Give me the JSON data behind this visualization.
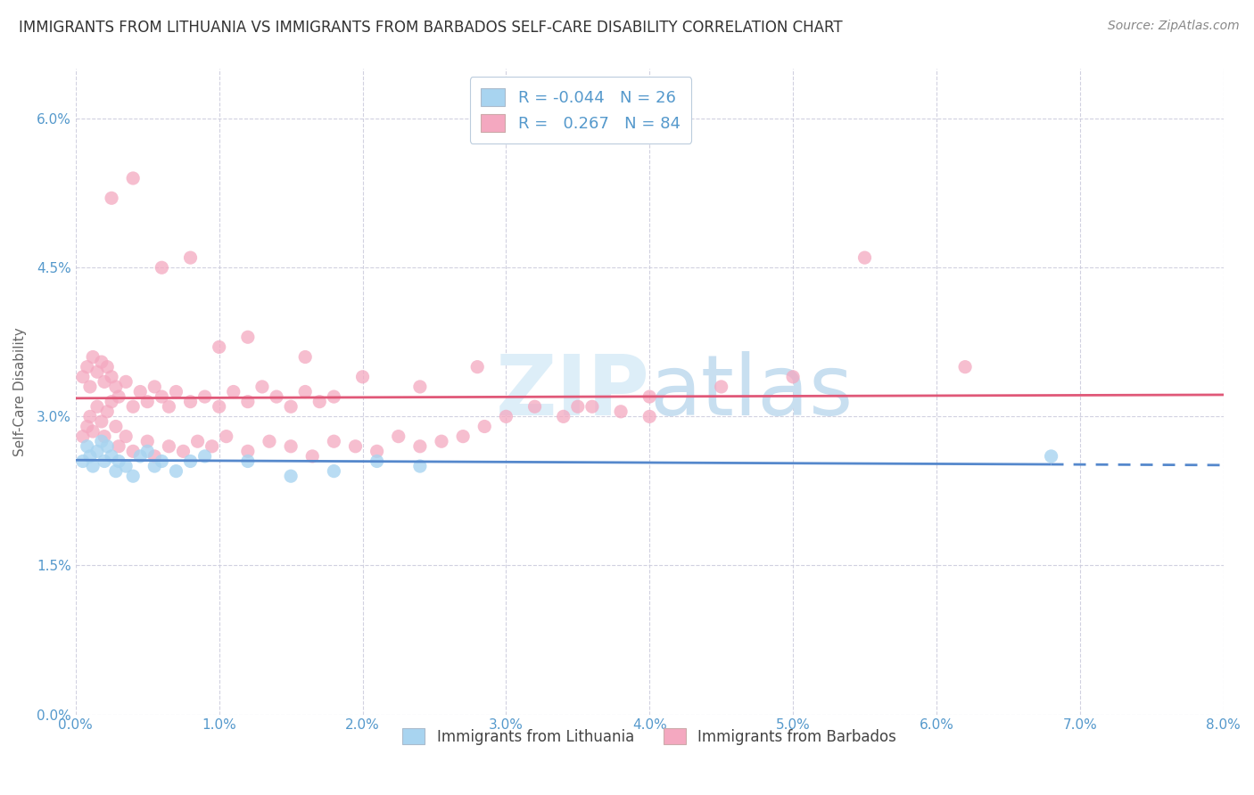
{
  "title": "IMMIGRANTS FROM LITHUANIA VS IMMIGRANTS FROM BARBADOS SELF-CARE DISABILITY CORRELATION CHART",
  "source": "Source: ZipAtlas.com",
  "ylabel": "Self-Care Disability",
  "y_ticks": [
    0.0,
    1.5,
    3.0,
    4.5,
    6.0
  ],
  "x_ticks": [
    0,
    1,
    2,
    3,
    4,
    5,
    6,
    7,
    8
  ],
  "x_lim": [
    0.0,
    8.0
  ],
  "y_lim": [
    0.0,
    6.5
  ],
  "color_lithuania": "#a8d4f0",
  "color_barbados": "#f4a8c0",
  "line_color_lithuania": "#5588cc",
  "line_color_barbados": "#e05878",
  "background_color": "#ffffff",
  "grid_color": "#ccccdd",
  "tick_color": "#5599cc",
  "title_color": "#333333",
  "source_color": "#888888",
  "watermark_color": "#ddeef8",
  "lith_x": [
    0.05,
    0.08,
    0.1,
    0.12,
    0.15,
    0.18,
    0.2,
    0.22,
    0.25,
    0.28,
    0.3,
    0.35,
    0.4,
    0.45,
    0.5,
    0.55,
    0.6,
    0.7,
    0.8,
    0.9,
    1.2,
    1.5,
    1.8,
    2.1,
    2.4,
    6.8
  ],
  "lith_y": [
    2.55,
    2.7,
    2.6,
    2.5,
    2.65,
    2.75,
    2.55,
    2.7,
    2.6,
    2.45,
    2.55,
    2.5,
    2.4,
    2.6,
    2.65,
    2.5,
    2.55,
    2.45,
    2.55,
    2.6,
    2.55,
    2.4,
    2.45,
    2.55,
    2.5,
    2.6
  ],
  "barb_x": [
    0.05,
    0.08,
    0.1,
    0.12,
    0.15,
    0.18,
    0.2,
    0.22,
    0.25,
    0.28,
    0.05,
    0.08,
    0.1,
    0.12,
    0.15,
    0.18,
    0.2,
    0.22,
    0.25,
    0.28,
    0.3,
    0.35,
    0.4,
    0.45,
    0.5,
    0.55,
    0.6,
    0.65,
    0.7,
    0.8,
    0.9,
    1.0,
    1.1,
    1.2,
    1.3,
    1.4,
    1.5,
    1.6,
    1.7,
    1.8,
    0.3,
    0.35,
    0.4,
    0.5,
    0.55,
    0.65,
    0.75,
    0.85,
    0.95,
    1.05,
    1.2,
    1.35,
    1.5,
    1.65,
    1.8,
    1.95,
    2.1,
    2.25,
    2.4,
    2.55,
    2.7,
    2.85,
    3.0,
    3.2,
    3.4,
    3.6,
    3.8,
    4.0,
    4.5,
    5.0,
    0.25,
    0.4,
    0.6,
    0.8,
    1.0,
    1.2,
    1.6,
    2.0,
    2.4,
    2.8,
    3.5,
    4.0,
    5.5,
    6.2
  ],
  "barb_y": [
    2.8,
    2.9,
    3.0,
    2.85,
    3.1,
    2.95,
    2.8,
    3.05,
    3.15,
    2.9,
    3.4,
    3.5,
    3.3,
    3.6,
    3.45,
    3.55,
    3.35,
    3.5,
    3.4,
    3.3,
    3.2,
    3.35,
    3.1,
    3.25,
    3.15,
    3.3,
    3.2,
    3.1,
    3.25,
    3.15,
    3.2,
    3.1,
    3.25,
    3.15,
    3.3,
    3.2,
    3.1,
    3.25,
    3.15,
    3.2,
    2.7,
    2.8,
    2.65,
    2.75,
    2.6,
    2.7,
    2.65,
    2.75,
    2.7,
    2.8,
    2.65,
    2.75,
    2.7,
    2.6,
    2.75,
    2.7,
    2.65,
    2.8,
    2.7,
    2.75,
    2.8,
    2.9,
    3.0,
    3.1,
    3.0,
    3.1,
    3.05,
    3.2,
    3.3,
    3.4,
    5.2,
    5.4,
    4.5,
    4.6,
    3.7,
    3.8,
    3.6,
    3.4,
    3.3,
    3.5,
    3.1,
    3.0,
    4.6,
    3.5
  ]
}
